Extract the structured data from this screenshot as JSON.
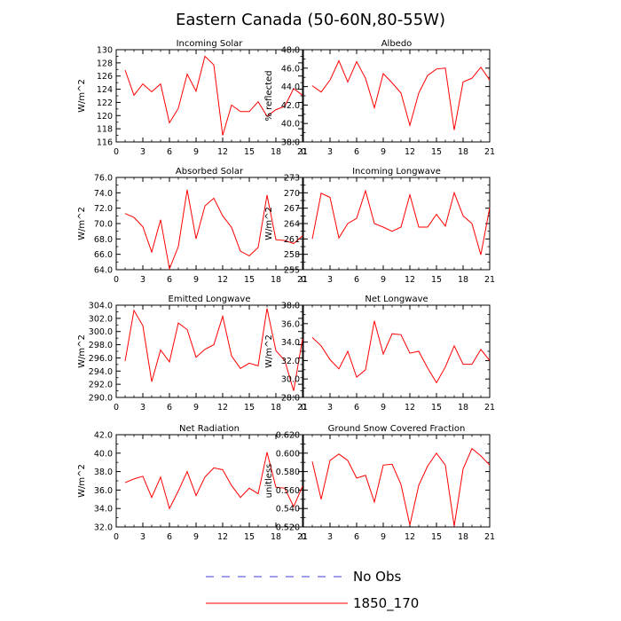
{
  "figure": {
    "title": "Eastern Canada (50-60N,80-55W)"
  },
  "legend": [
    {
      "label": "No Obs",
      "color": "#3b3bd1",
      "dash": true
    },
    {
      "label": "1850_170",
      "color": "#ff0000",
      "dash": false
    }
  ],
  "chart_data": [
    {
      "type": "line",
      "title": "Incoming Solar",
      "ylabel": "W/m^2",
      "xlim": [
        0,
        21
      ],
      "xticks": [
        "0",
        "3",
        "6",
        "9",
        "12",
        "15",
        "18",
        "21"
      ],
      "ylim": [
        116,
        130
      ],
      "yticks": [
        "116",
        "118",
        "120",
        "122",
        "124",
        "126",
        "128",
        "130"
      ],
      "series": [
        {
          "color": "#ff0000",
          "x": [
            1,
            2,
            3,
            4,
            5,
            6,
            7,
            8,
            9,
            10,
            11,
            12,
            13,
            14,
            15,
            16,
            17,
            18,
            19,
            20,
            21
          ],
          "y": [
            126.9,
            123.1,
            124.8,
            123.6,
            124.8,
            118.9,
            121.1,
            126.3,
            123.7,
            129.0,
            127.7,
            117.0,
            121.6,
            120.6,
            120.6,
            122.1,
            119.9,
            120.9,
            121.4,
            124.1,
            123.1
          ]
        }
      ]
    },
    {
      "type": "line",
      "title": "Albedo",
      "ylabel": "% reflected",
      "xlim": [
        0,
        21
      ],
      "xticks": [
        "0",
        "3",
        "6",
        "9",
        "12",
        "15",
        "18",
        "21"
      ],
      "ylim": [
        38,
        48
      ],
      "yticks": [
        "38.0",
        "40.0",
        "42.0",
        "44.0",
        "46.0",
        "48.0"
      ],
      "series": [
        {
          "color": "#ff0000",
          "x": [
            1,
            2,
            3,
            4,
            5,
            6,
            7,
            8,
            9,
            10,
            11,
            12,
            13,
            14,
            15,
            16,
            17,
            18,
            19,
            20,
            21
          ],
          "y": [
            44.1,
            43.4,
            44.7,
            46.8,
            44.5,
            46.7,
            44.9,
            41.7,
            45.4,
            44.4,
            43.3,
            39.8,
            43.3,
            45.2,
            45.9,
            46.0,
            39.3,
            44.5,
            44.9,
            46.1,
            44.7
          ]
        }
      ]
    },
    {
      "type": "line",
      "title": "Absorbed Solar",
      "ylabel": "W/m^2",
      "xlim": [
        0,
        21
      ],
      "xticks": [
        "0",
        "3",
        "6",
        "9",
        "12",
        "15",
        "18",
        "21"
      ],
      "ylim": [
        64,
        76
      ],
      "yticks": [
        "64.0",
        "66.0",
        "68.0",
        "70.0",
        "72.0",
        "74.0",
        "76.0"
      ],
      "series": [
        {
          "color": "#ff0000",
          "x": [
            1,
            2,
            3,
            4,
            5,
            6,
            7,
            8,
            9,
            10,
            11,
            12,
            13,
            14,
            15,
            16,
            17,
            18,
            19,
            20,
            21
          ],
          "y": [
            71.3,
            70.8,
            69.6,
            66.3,
            70.5,
            64.1,
            67.0,
            74.4,
            68.0,
            72.3,
            73.3,
            71.0,
            69.5,
            66.4,
            65.8,
            66.9,
            73.7,
            67.9,
            67.8,
            67.4,
            68.4
          ]
        }
      ]
    },
    {
      "type": "line",
      "title": "Incoming Longwave",
      "ylabel": "W/m^2",
      "xlim": [
        0,
        21
      ],
      "xticks": [
        "0",
        "3",
        "6",
        "9",
        "12",
        "15",
        "18",
        "21"
      ],
      "ylim": [
        255,
        273
      ],
      "yticks": [
        "255",
        "258",
        "261",
        "264",
        "267",
        "270",
        "273"
      ],
      "series": [
        {
          "color": "#ff0000",
          "x": [
            1,
            2,
            3,
            4,
            5,
            6,
            7,
            8,
            9,
            10,
            11,
            12,
            13,
            14,
            15,
            16,
            17,
            18,
            19,
            20,
            21
          ],
          "y": [
            261.0,
            269.9,
            269.1,
            261.2,
            264.0,
            265.0,
            270.4,
            264.0,
            263.3,
            262.5,
            263.3,
            269.6,
            263.3,
            263.3,
            265.8,
            263.5,
            270.0,
            265.5,
            264.0,
            257.9,
            267.1
          ]
        }
      ]
    },
    {
      "type": "line",
      "title": "Emitted Longwave",
      "ylabel": "W/m^2",
      "xlim": [
        0,
        21
      ],
      "xticks": [
        "0",
        "3",
        "6",
        "9",
        "12",
        "15",
        "18",
        "21"
      ],
      "ylim": [
        290,
        304
      ],
      "yticks": [
        "290.0",
        "292.0",
        "294.0",
        "296.0",
        "298.0",
        "300.0",
        "302.0",
        "304.0"
      ],
      "series": [
        {
          "color": "#ff0000",
          "x": [
            1,
            2,
            3,
            4,
            5,
            6,
            7,
            8,
            9,
            10,
            11,
            12,
            13,
            14,
            15,
            16,
            17,
            18,
            19,
            20,
            21
          ],
          "y": [
            295.5,
            303.2,
            300.9,
            292.4,
            297.2,
            295.4,
            301.3,
            300.3,
            296.1,
            297.3,
            298.0,
            302.3,
            296.3,
            294.4,
            295.2,
            294.8,
            303.5,
            297.1,
            295.6,
            291.0,
            298.9
          ]
        }
      ]
    },
    {
      "type": "line",
      "title": "Net Longwave",
      "ylabel": "W/m^2",
      "xlim": [
        0,
        21
      ],
      "xticks": [
        "0",
        "3",
        "6",
        "9",
        "12",
        "15",
        "18",
        "21"
      ],
      "ylim": [
        28,
        38
      ],
      "yticks": [
        "28.0",
        "30.0",
        "32.0",
        "34.0",
        "36.0",
        "38.0"
      ],
      "series": [
        {
          "color": "#ff0000",
          "x": [
            1,
            2,
            3,
            4,
            5,
            6,
            7,
            8,
            9,
            10,
            11,
            12,
            13,
            14,
            15,
            16,
            17,
            18,
            19,
            20,
            21
          ],
          "y": [
            34.5,
            33.6,
            32.1,
            31.1,
            33.0,
            30.2,
            31.0,
            36.3,
            32.7,
            34.9,
            34.8,
            32.8,
            33.0,
            31.2,
            29.6,
            31.3,
            33.6,
            31.6,
            31.6,
            33.2,
            32.0
          ]
        }
      ]
    },
    {
      "type": "line",
      "title": "Net Radiation",
      "ylabel": "W/m^2",
      "xlim": [
        0,
        21
      ],
      "xticks": [
        "0",
        "3",
        "6",
        "9",
        "12",
        "15",
        "18",
        "21"
      ],
      "ylim": [
        32,
        42
      ],
      "yticks": [
        "32.0",
        "34.0",
        "36.0",
        "38.0",
        "40.0",
        "42.0"
      ],
      "series": [
        {
          "color": "#ff0000",
          "x": [
            1,
            2,
            3,
            4,
            5,
            6,
            7,
            8,
            9,
            10,
            11,
            12,
            13,
            14,
            15,
            16,
            17,
            18,
            19,
            20,
            21
          ],
          "y": [
            36.8,
            37.2,
            37.5,
            35.2,
            37.4,
            34.0,
            35.9,
            38.0,
            35.4,
            37.4,
            38.4,
            38.2,
            36.5,
            35.2,
            36.2,
            35.6,
            40.1,
            36.3,
            36.2,
            34.2,
            36.4
          ]
        }
      ]
    },
    {
      "type": "line",
      "title": "Ground Snow Covered Fraction",
      "ylabel": "unitless",
      "xlim": [
        0,
        21
      ],
      "xticks": [
        "0",
        "3",
        "6",
        "9",
        "12",
        "15",
        "18",
        "21"
      ],
      "ylim": [
        0.52,
        0.62
      ],
      "yticks": [
        "0.520",
        "0.540",
        "0.560",
        "0.580",
        "0.600",
        "0.620"
      ],
      "series": [
        {
          "color": "#ff0000",
          "x": [
            1,
            2,
            3,
            4,
            5,
            6,
            7,
            8,
            9,
            10,
            11,
            12,
            13,
            14,
            15,
            16,
            17,
            18,
            19,
            20,
            21
          ],
          "y": [
            0.591,
            0.55,
            0.592,
            0.599,
            0.592,
            0.573,
            0.576,
            0.547,
            0.587,
            0.588,
            0.566,
            0.522,
            0.565,
            0.586,
            0.6,
            0.587,
            0.521,
            0.583,
            0.605,
            0.597,
            0.587
          ]
        }
      ]
    }
  ]
}
